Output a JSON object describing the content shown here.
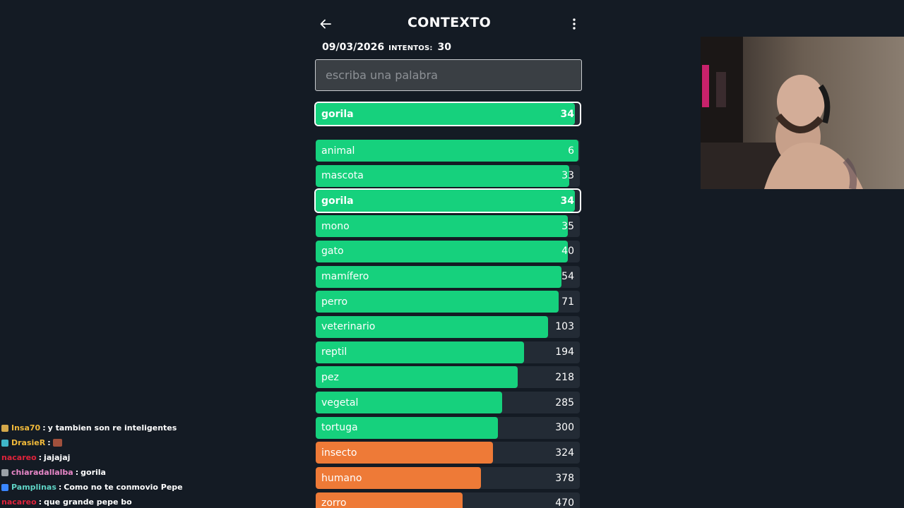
{
  "header": {
    "title": "CONTEXTO",
    "date": "09/03/2026",
    "attempts_label": "INTENTOS:",
    "attempts_value": "30"
  },
  "search": {
    "placeholder": "escriba una palabra",
    "value": ""
  },
  "last_guess": {
    "word": "gorila",
    "rank": "34",
    "fill_fraction": 0.98,
    "color": "#16d17d"
  },
  "guesses": [
    {
      "word": "animal",
      "rank": "6",
      "fill_fraction": 0.995,
      "color": "#16d17d"
    },
    {
      "word": "mascota",
      "rank": "33",
      "fill_fraction": 0.96,
      "color": "#16d17d"
    },
    {
      "word": "gorila",
      "rank": "34",
      "fill_fraction": 0.98,
      "color": "#16d17d",
      "highlight": true
    },
    {
      "word": "mono",
      "rank": "35",
      "fill_fraction": 0.955,
      "color": "#16d17d"
    },
    {
      "word": "gato",
      "rank": "40",
      "fill_fraction": 0.955,
      "color": "#16d17d"
    },
    {
      "word": "mamífero",
      "rank": "54",
      "fill_fraction": 0.93,
      "color": "#16d17d"
    },
    {
      "word": "perro",
      "rank": "71",
      "fill_fraction": 0.92,
      "color": "#16d17d"
    },
    {
      "word": "veterinario",
      "rank": "103",
      "fill_fraction": 0.88,
      "color": "#16d17d"
    },
    {
      "word": "reptil",
      "rank": "194",
      "fill_fraction": 0.79,
      "color": "#16d17d"
    },
    {
      "word": "pez",
      "rank": "218",
      "fill_fraction": 0.765,
      "color": "#16d17d"
    },
    {
      "word": "vegetal",
      "rank": "285",
      "fill_fraction": 0.705,
      "color": "#16d17d"
    },
    {
      "word": "tortuga",
      "rank": "300",
      "fill_fraction": 0.69,
      "color": "#16d17d"
    },
    {
      "word": "insecto",
      "rank": "324",
      "fill_fraction": 0.67,
      "color": "#ee7a37"
    },
    {
      "word": "humano",
      "rank": "378",
      "fill_fraction": 0.625,
      "color": "#ee7a37"
    },
    {
      "word": "zorro",
      "rank": "470",
      "fill_fraction": 0.555,
      "color": "#ee7a37"
    }
  ],
  "chat": [
    {
      "user": "Insa70",
      "user_color": "#f0b93a",
      "badge_color": "#d4a84a",
      "message": "y tambien son re inteligentes"
    },
    {
      "user": "DrasieR",
      "user_color": "#f0b93a",
      "badge_color": "#3fb6c8",
      "message": "",
      "emote": true
    },
    {
      "user": "nacareo",
      "user_color": "#e0233b",
      "badge_color": "",
      "message": "jajajaj"
    },
    {
      "user": "chiaradallalba",
      "user_color": "#e887c8",
      "badge_color": "#9aa0a6",
      "message": "gorila"
    },
    {
      "user": "Pamplinas",
      "user_color": "#5fd3c5",
      "badge_color": "#3a86ff",
      "message": "Como no te conmovio Pepe"
    },
    {
      "user": "nacareo",
      "user_color": "#e0233b",
      "badge_color": "",
      "message": "que grande pepe bo"
    }
  ],
  "colors": {
    "background": "#141b24",
    "green": "#16d17d",
    "orange": "#ee7a37",
    "track": "#232b35"
  },
  "icons": {
    "back": "arrow-left-icon",
    "menu": "kebab-menu-icon"
  }
}
